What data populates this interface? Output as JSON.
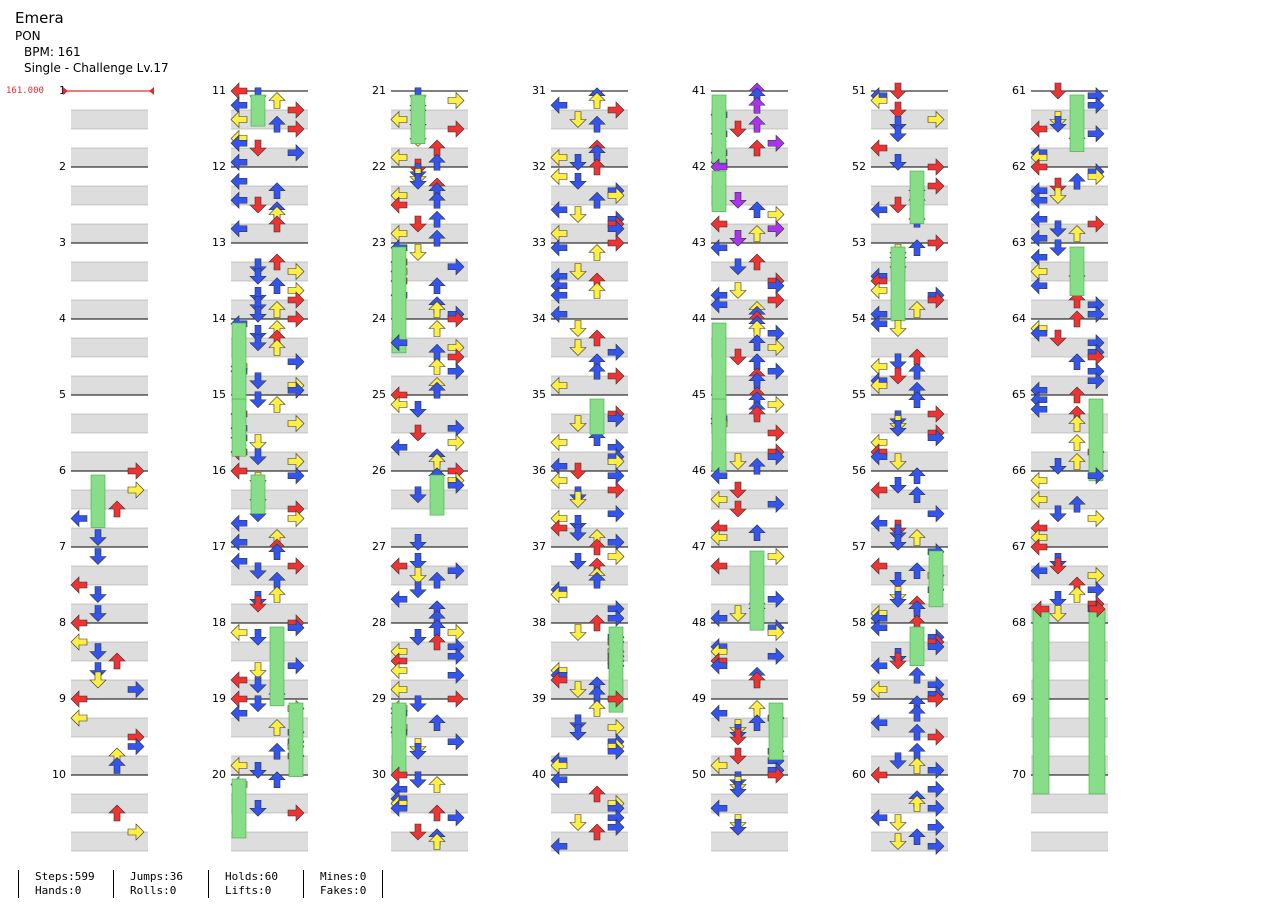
{
  "song": {
    "title": "Emera",
    "artist": "PON",
    "bpm_label": "BPM: 161",
    "difficulty_label": "Single - Challenge  Lv.17"
  },
  "bpm_change": {
    "value": "161.000",
    "measure": 1
  },
  "chart": {
    "columns": 7,
    "measures_per_column": 10,
    "total_measures": 70,
    "measure_numbers": [
      1,
      2,
      3,
      4,
      5,
      6,
      7,
      8,
      9,
      10,
      11,
      12,
      13,
      14,
      15,
      16,
      17,
      18,
      19,
      20,
      21,
      22,
      23,
      24,
      25,
      26,
      27,
      28,
      29,
      30,
      31,
      32,
      33,
      34,
      35,
      36,
      37,
      38,
      39,
      40,
      41,
      42,
      43,
      44,
      45,
      46,
      47,
      48,
      49,
      50,
      51,
      52,
      53,
      54,
      55,
      56,
      57,
      58,
      59,
      60,
      61,
      62,
      63,
      64,
      65,
      66,
      67,
      68,
      69,
      70
    ],
    "lane_colors": {
      "left": "#ee3333",
      "down": "#3355ee",
      "up": "#ffee44",
      "right": "#ee3333",
      "quarter_red": "#ee3333",
      "eighth_blue": "#3355ee",
      "sixteenth_yellow": "#ffee44",
      "purple": "#aa33ee",
      "hold": "#88dd88"
    }
  },
  "stats": {
    "steps": "Steps:599",
    "jumps": "Jumps:36",
    "holds": "Holds:60",
    "mines": "Mines:0",
    "hands": "Hands:0",
    "rolls": "Rolls:0",
    "lifts": "Lifts:0",
    "fakes": "Fakes:0"
  }
}
